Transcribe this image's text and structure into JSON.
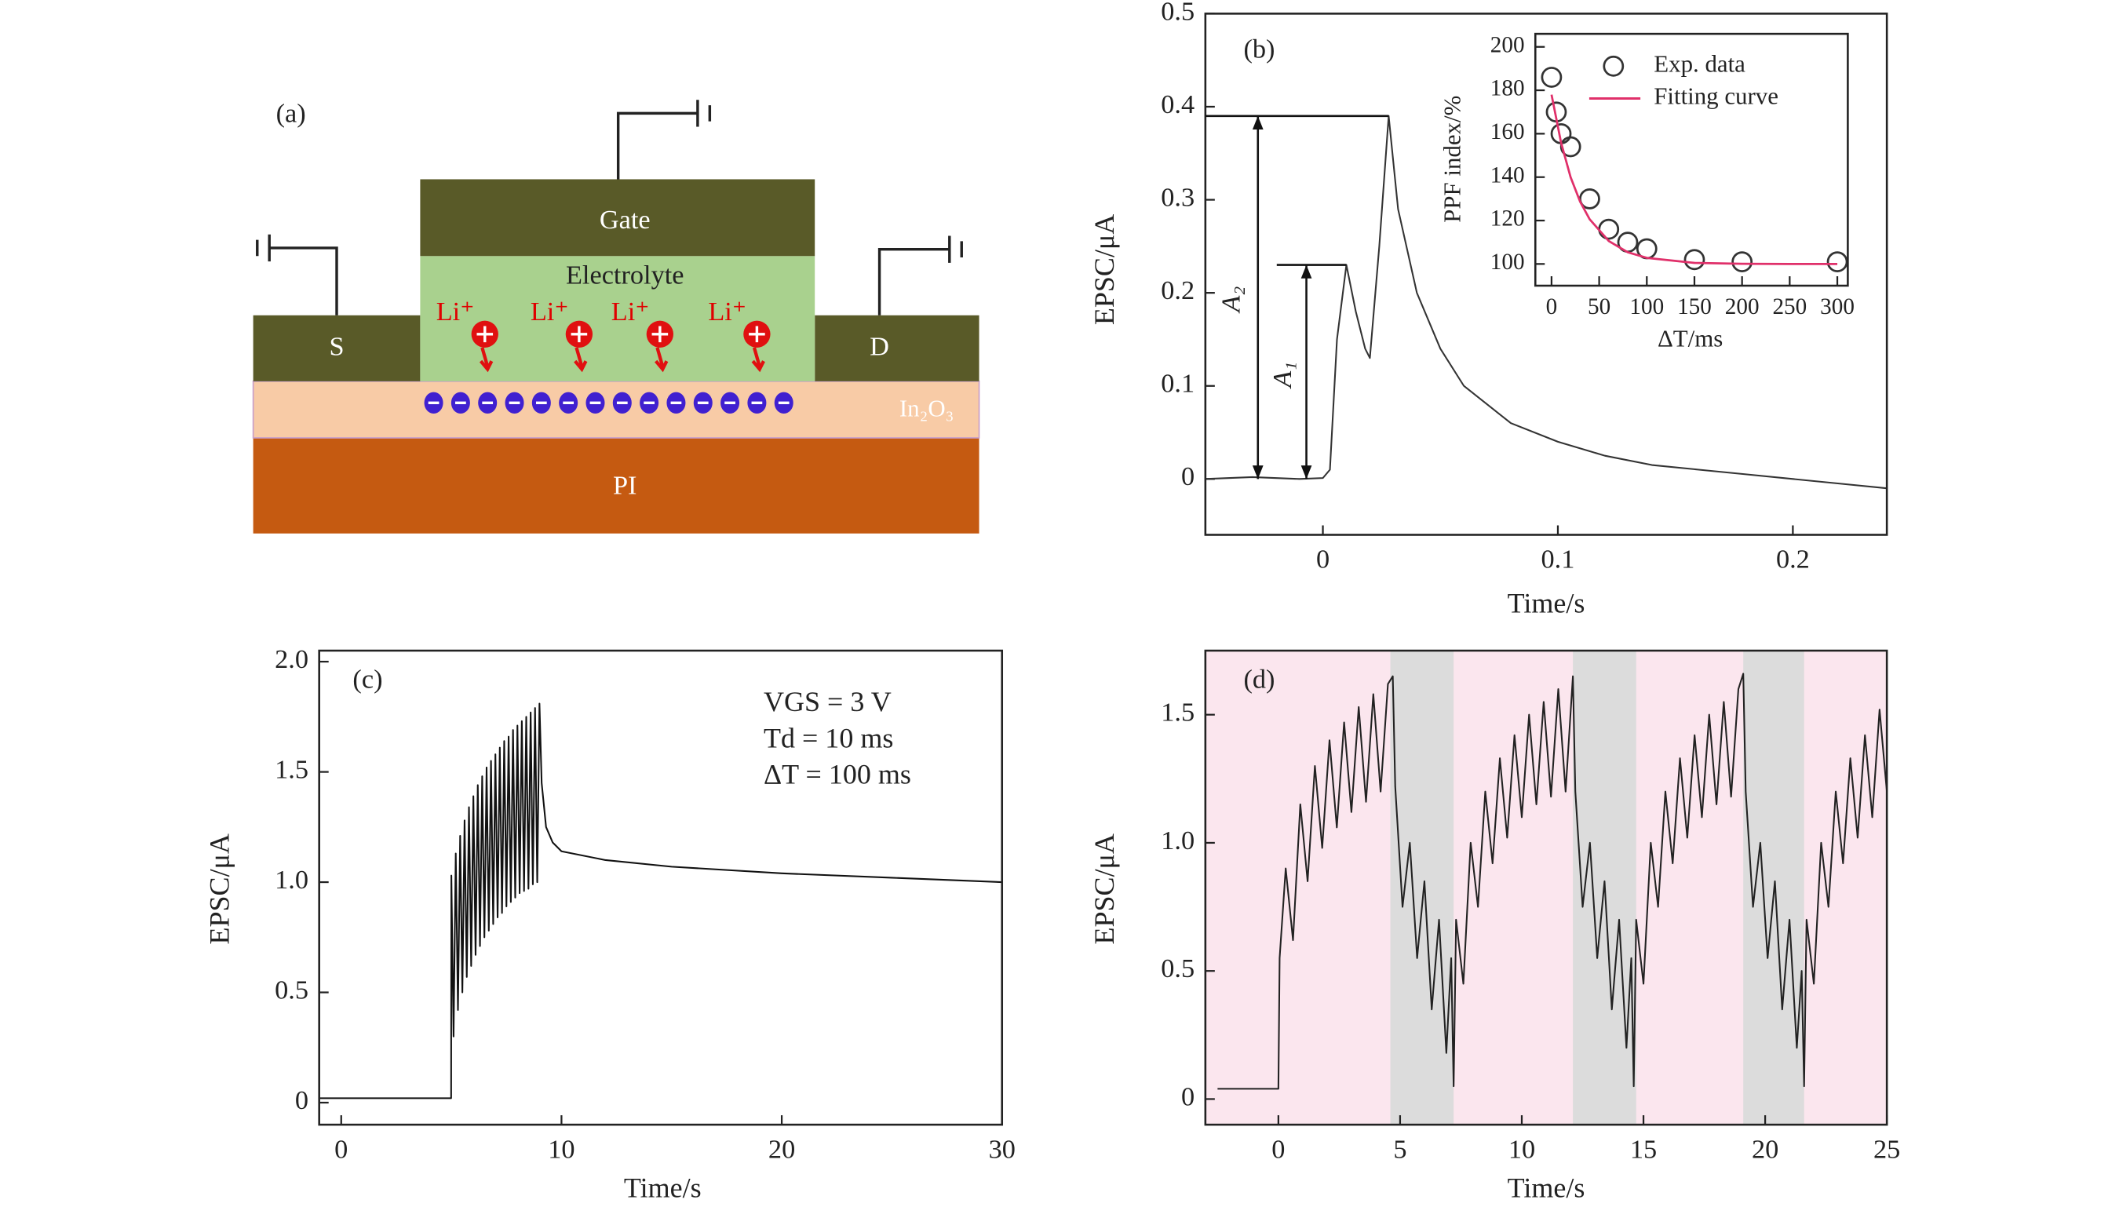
{
  "diagram": {
    "label": "(a)",
    "gate": "Gate",
    "electrolyte": "Electrolyte",
    "source": "S",
    "drain": "D",
    "channel": "In₂O₃",
    "substrate": "PI",
    "ions": [
      "Li⁺",
      "Li⁺",
      "Li⁺",
      "Li⁺"
    ]
  },
  "chart_data": [
    {
      "type": "line",
      "label": "(b)",
      "xlabel": "Time/s",
      "ylabel": "EPSC/μA",
      "xlim": [
        -0.05,
        0.24
      ],
      "ylim": [
        -0.06,
        0.5
      ],
      "xticks": [
        0,
        0.1,
        0.2
      ],
      "yticks": [
        0,
        0.1,
        0.2,
        0.3,
        0.4,
        0.5
      ],
      "annotations": [
        "A₂",
        "A₁"
      ],
      "series": [
        {
          "color": "#333333",
          "x": [
            -0.05,
            -0.03,
            -0.01,
            0,
            0.003,
            0.006,
            0.01,
            0.014,
            0.018,
            0.02,
            0.024,
            0.028,
            0.032,
            0.04,
            0.05,
            0.06,
            0.08,
            0.1,
            0.12,
            0.14,
            0.16,
            0.18,
            0.2,
            0.22,
            0.24
          ],
          "values": [
            0,
            0.002,
            0,
            0.001,
            0.01,
            0.15,
            0.23,
            0.18,
            0.14,
            0.13,
            0.25,
            0.39,
            0.29,
            0.2,
            0.14,
            0.1,
            0.06,
            0.04,
            0.025,
            0.015,
            0.01,
            0.005,
            0,
            -0.005,
            -0.01
          ]
        }
      ]
    },
    {
      "type": "line",
      "xlabel": "ΔT/ms",
      "ylabel": "PPF index/%",
      "xlim": [
        -17,
        311
      ],
      "ylim": [
        90,
        206
      ],
      "xticks": [
        0,
        50,
        100,
        150,
        200,
        250,
        300
      ],
      "yticks": [
        100,
        120,
        140,
        160,
        180,
        200
      ],
      "legend": "upper right",
      "series": [
        {
          "name": "Exp. data",
          "type": "scatter",
          "color": "#333333",
          "x": [
            0,
            5,
            10,
            20,
            40,
            60,
            80,
            100,
            150,
            200,
            300
          ],
          "values": [
            186,
            170,
            160,
            154,
            130,
            116,
            110,
            107,
            102,
            101,
            101
          ]
        },
        {
          "name": "Fitting curve",
          "type": "line",
          "color": "#e0306a",
          "x": [
            0,
            10,
            20,
            30,
            40,
            60,
            80,
            100,
            150,
            200,
            250,
            300
          ],
          "values": [
            178,
            155.9,
            140,
            128.7,
            120.6,
            110.6,
            105.4,
            102.8,
            100.5,
            100.1,
            100,
            100
          ]
        }
      ]
    },
    {
      "type": "line",
      "label": "(c)",
      "xlabel": "Time/s",
      "ylabel": "EPSC/μA",
      "xlim": [
        -1,
        30
      ],
      "ylim": [
        -0.1,
        2.05
      ],
      "xticks": [
        0,
        10,
        20,
        30
      ],
      "yticks": [
        0,
        0.5,
        {
          "value": 1,
          "label": "1.0"
        },
        1.5,
        {
          "value": 2,
          "label": "2.0"
        }
      ],
      "annotations": [
        "VGS = 3 V",
        "Td = 10 ms",
        "ΔT = 100 ms"
      ],
      "series": [
        {
          "color": "#111111",
          "x": [
            -1,
            0,
            2,
            4,
            4.99,
            5.0,
            5.1,
            5.2,
            5.3,
            5.4,
            5.5,
            5.6,
            5.7,
            5.8,
            5.9,
            6.0,
            6.1,
            6.2,
            6.3,
            6.4,
            6.5,
            6.6,
            6.7,
            6.8,
            6.9,
            7.0,
            7.1,
            7.2,
            7.3,
            7.4,
            7.5,
            7.6,
            7.7,
            7.8,
            7.9,
            8.0,
            8.1,
            8.2,
            8.3,
            8.4,
            8.5,
            8.6,
            8.7,
            8.8,
            8.9,
            9.0,
            9.1,
            9.3,
            9.6,
            10,
            12,
            15,
            20,
            25,
            30
          ],
          "values": [
            0.02,
            0.02,
            0.02,
            0.02,
            0.02,
            1.03,
            0.3,
            1.13,
            0.42,
            1.21,
            0.5,
            1.28,
            0.57,
            1.34,
            0.62,
            1.39,
            0.67,
            1.44,
            0.71,
            1.48,
            0.75,
            1.52,
            0.78,
            1.55,
            0.81,
            1.58,
            0.84,
            1.61,
            0.86,
            1.64,
            0.89,
            1.66,
            0.91,
            1.69,
            0.93,
            1.71,
            0.95,
            1.73,
            0.96,
            1.75,
            0.97,
            1.77,
            0.99,
            1.79,
            1.0,
            1.81,
            1.45,
            1.25,
            1.18,
            1.14,
            1.1,
            1.07,
            1.04,
            1.02,
            1.0
          ]
        }
      ]
    },
    {
      "type": "line",
      "label": "(d)",
      "xlabel": "Time/s",
      "ylabel": "EPSC/μA",
      "xlim": [
        -3,
        25
      ],
      "ylim": [
        -0.1,
        1.75
      ],
      "xticks": [
        0,
        5,
        10,
        15,
        20,
        25
      ],
      "yticks": [
        0,
        0.5,
        {
          "value": 1,
          "label": "1.0"
        },
        1.5
      ],
      "background": "#fbe6ee",
      "band_color": "#dcdcdc",
      "bands": [
        [
          4.6,
          7.2
        ],
        [
          12.1,
          14.7
        ],
        [
          19.1,
          21.6
        ]
      ],
      "series": [
        {
          "color": "#222222",
          "x": [
            -2.5,
            0,
            0.05,
            0.3,
            0.6,
            0.9,
            1.2,
            1.5,
            1.8,
            2.1,
            2.4,
            2.7,
            3.0,
            3.3,
            3.6,
            3.9,
            4.2,
            4.5,
            4.7,
            4.8,
            5.1,
            5.4,
            5.7,
            6.0,
            6.3,
            6.6,
            6.9,
            7.1,
            7.2,
            7.3,
            7.6,
            7.9,
            8.2,
            8.5,
            8.8,
            9.1,
            9.4,
            9.7,
            10.0,
            10.3,
            10.6,
            10.9,
            11.2,
            11.5,
            11.8,
            12.1,
            12.2,
            12.5,
            12.8,
            13.1,
            13.4,
            13.7,
            14.0,
            14.3,
            14.5,
            14.6,
            14.7,
            15.0,
            15.3,
            15.6,
            15.9,
            16.2,
            16.5,
            16.8,
            17.1,
            17.4,
            17.7,
            18.0,
            18.3,
            18.6,
            18.9,
            19.1,
            19.2,
            19.5,
            19.8,
            20.1,
            20.4,
            20.7,
            21.0,
            21.3,
            21.5,
            21.6,
            21.7,
            22.0,
            22.3,
            22.6,
            22.9,
            23.2,
            23.5,
            23.8,
            24.1,
            24.4,
            24.7,
            25.0
          ],
          "values": [
            0.04,
            0.04,
            0.55,
            0.9,
            0.62,
            1.15,
            0.85,
            1.3,
            0.98,
            1.4,
            1.06,
            1.47,
            1.12,
            1.53,
            1.16,
            1.58,
            1.2,
            1.62,
            1.65,
            1.22,
            0.75,
            1.0,
            0.55,
            0.85,
            0.35,
            0.7,
            0.18,
            0.55,
            0.05,
            0.7,
            0.45,
            1.0,
            0.75,
            1.2,
            0.92,
            1.33,
            1.02,
            1.42,
            1.1,
            1.5,
            1.15,
            1.55,
            1.18,
            1.6,
            1.2,
            1.65,
            1.2,
            0.75,
            1.0,
            0.55,
            0.85,
            0.35,
            0.7,
            0.2,
            0.55,
            0.05,
            0.7,
            0.45,
            1.0,
            0.75,
            1.2,
            0.92,
            1.33,
            1.02,
            1.42,
            1.1,
            1.5,
            1.15,
            1.55,
            1.18,
            1.6,
            1.66,
            1.2,
            0.75,
            1.0,
            0.55,
            0.85,
            0.35,
            0.7,
            0.2,
            0.5,
            0.05,
            0.7,
            0.45,
            1.0,
            0.75,
            1.2,
            0.92,
            1.33,
            1.02,
            1.42,
            1.1,
            1.52,
            1.2
          ]
        }
      ]
    }
  ]
}
